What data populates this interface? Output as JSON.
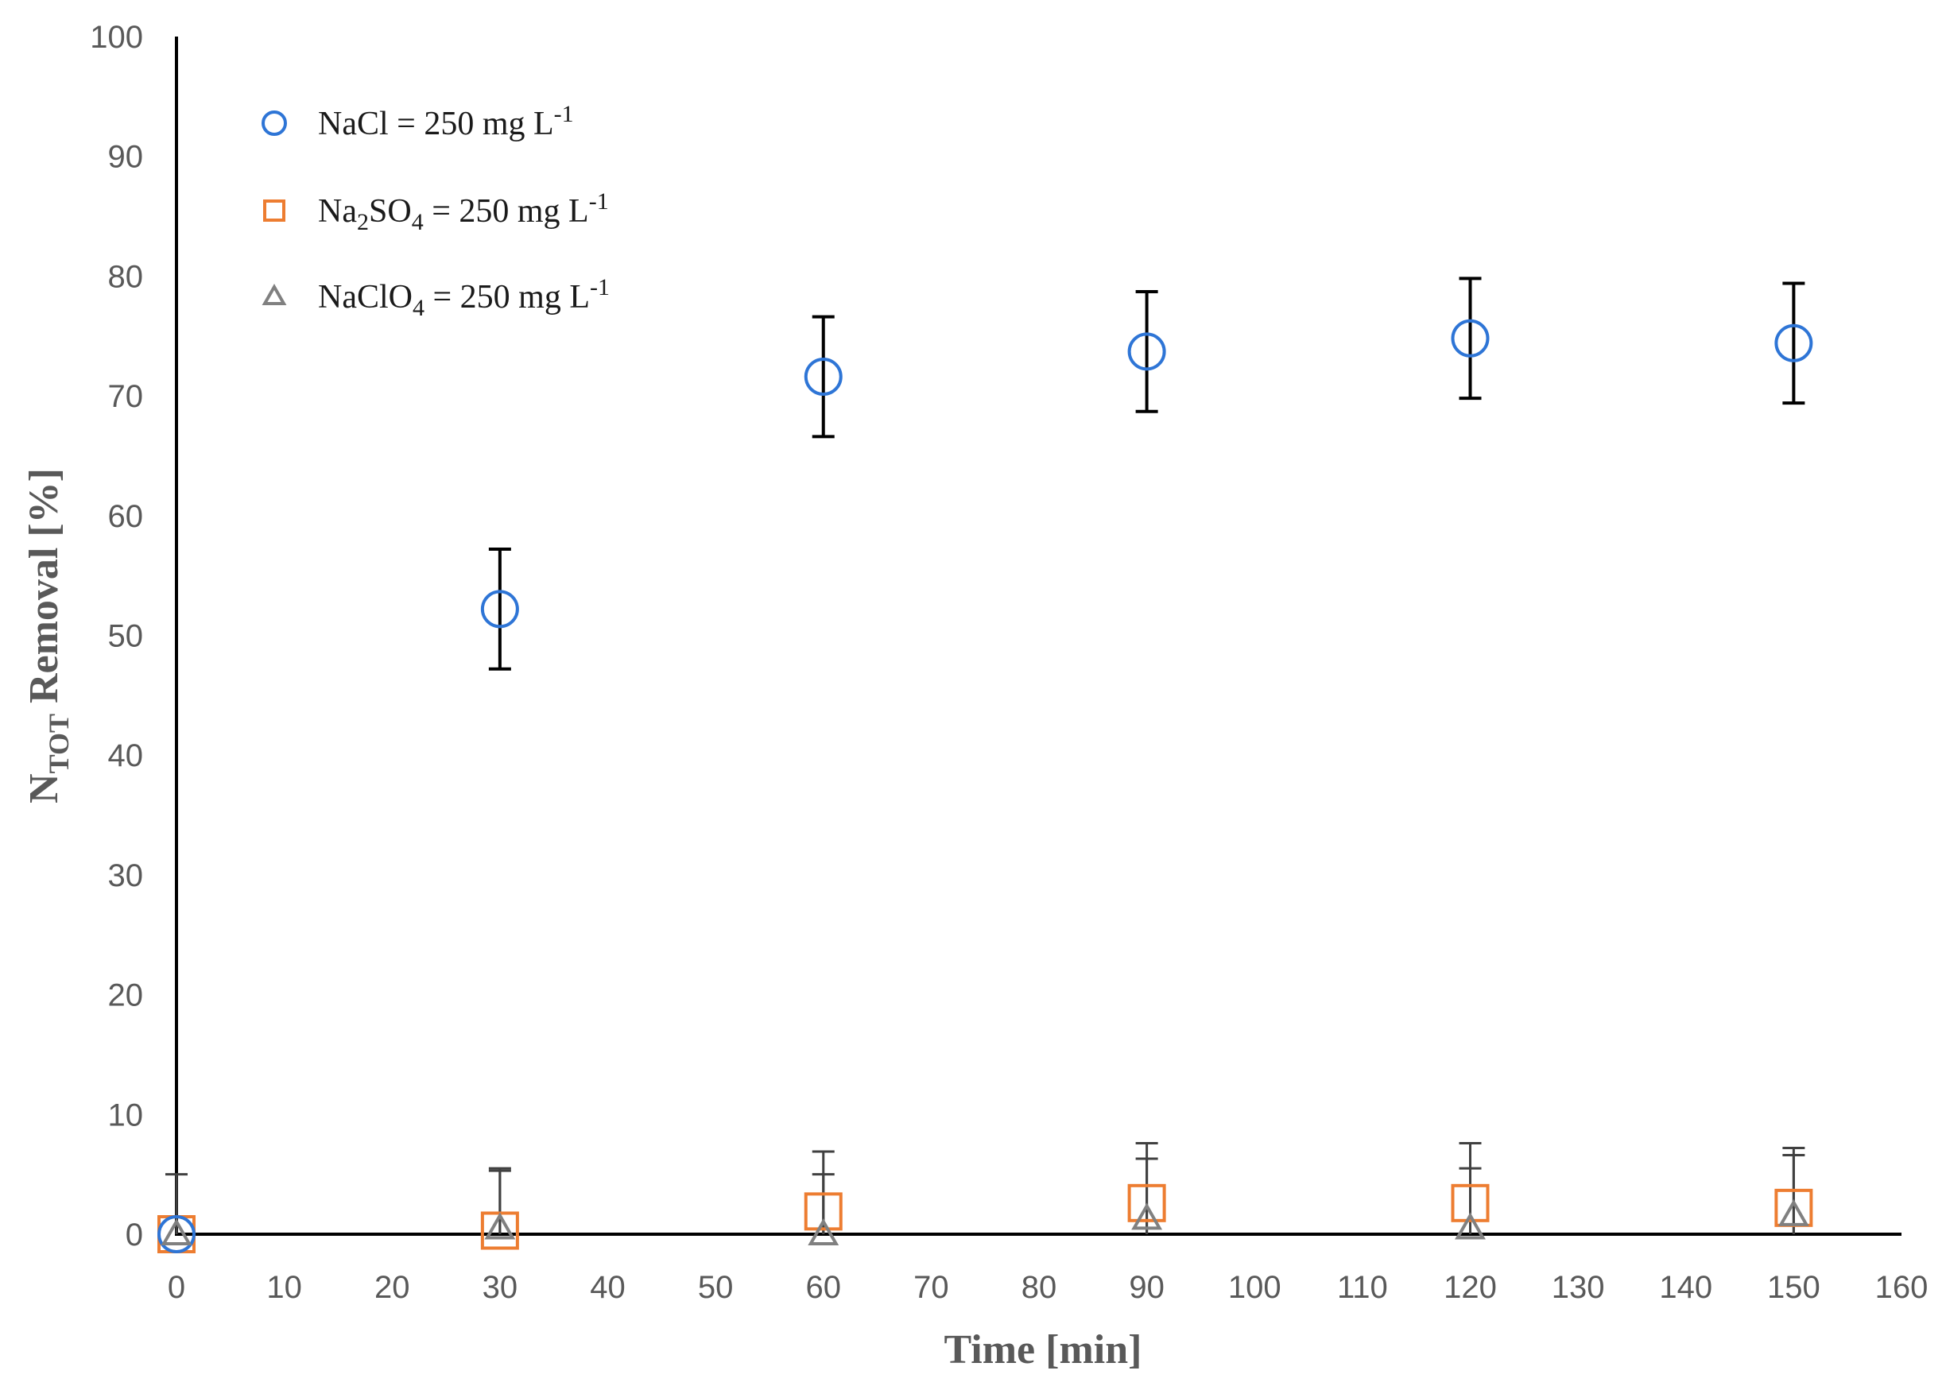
{
  "chart_data": {
    "type": "scatter",
    "xlabel": "Time [min]",
    "ylabel_main": "N",
    "ylabel_sub": "TOT",
    "ylabel_rest": " Removal [%]",
    "xlim": [
      0,
      160
    ],
    "ylim": [
      0,
      100
    ],
    "x_ticks": [
      0,
      10,
      20,
      30,
      40,
      50,
      60,
      70,
      80,
      90,
      100,
      110,
      120,
      130,
      140,
      150,
      160
    ],
    "y_ticks": [
      0,
      10,
      20,
      30,
      40,
      50,
      60,
      70,
      80,
      90,
      100
    ],
    "grid": false,
    "legend_position": "top-left",
    "series": [
      {
        "name": "NaCl = 250 mg L-1",
        "legend_parts": [
          [
            "NaCl = 250 mg L",
            ""
          ],
          [
            "-1",
            "sup"
          ]
        ],
        "marker": "circle",
        "color": "#2E75D6",
        "error_color": "#000000",
        "x": [
          0,
          30,
          60,
          90,
          120,
          150
        ],
        "y": [
          0,
          52.2,
          71.6,
          73.7,
          74.8,
          74.4
        ],
        "error": [
          0,
          5,
          5,
          5,
          5,
          5
        ]
      },
      {
        "name": "Na2SO4 = 250 mg L-1",
        "legend_parts": [
          [
            "Na",
            ""
          ],
          [
            "2",
            "sub"
          ],
          [
            "SO",
            ""
          ],
          [
            "4",
            "sub"
          ],
          [
            " = 250 mg L",
            ""
          ],
          [
            "-1",
            "sup"
          ]
        ],
        "marker": "square",
        "color": "#ED7D31",
        "error_color": "#404040",
        "x": [
          0,
          30,
          60,
          90,
          120,
          150
        ],
        "y": [
          0,
          0.3,
          1.9,
          2.6,
          2.6,
          2.2
        ],
        "error": [
          0,
          5,
          5,
          5,
          5,
          5
        ]
      },
      {
        "name": "NaClO4 = 250 mg L-1",
        "legend_parts": [
          [
            "NaClO",
            ""
          ],
          [
            "4",
            "sub"
          ],
          [
            " = 250 mg L",
            ""
          ],
          [
            "-1",
            "sup"
          ]
        ],
        "marker": "triangle",
        "color": "#808080",
        "error_color": "#404040",
        "x": [
          0,
          30,
          60,
          90,
          120,
          150
        ],
        "y": [
          0,
          0.5,
          0,
          1.3,
          0.5,
          1.6
        ],
        "error": [
          5,
          5,
          5,
          5,
          5,
          5
        ]
      }
    ]
  }
}
